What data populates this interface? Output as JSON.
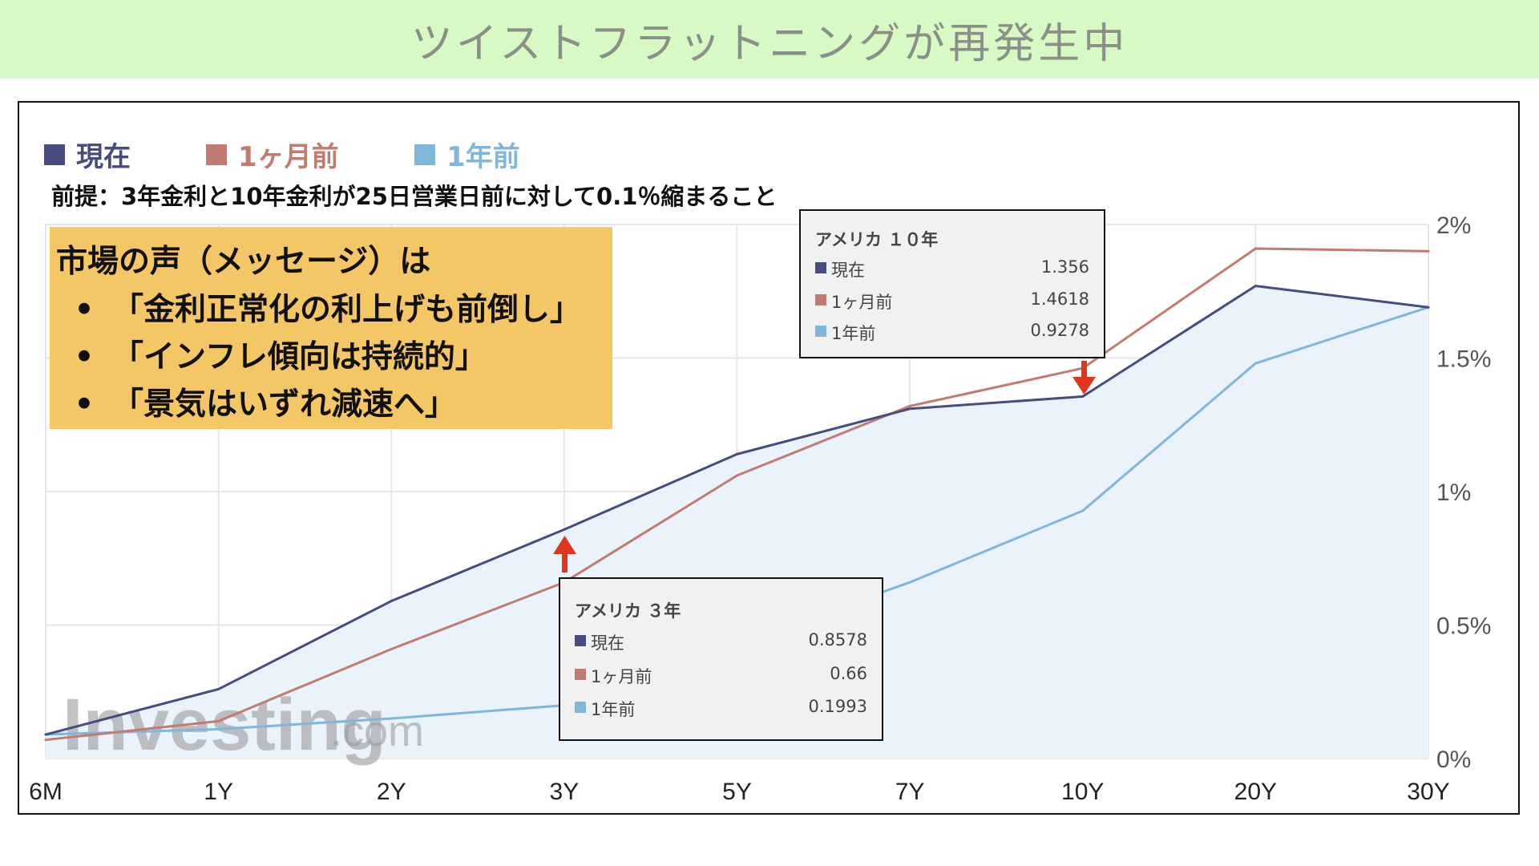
{
  "page": {
    "title": "ツイストフラットニングが再発生中",
    "premise": "前提：3年金利と10年金利が25日営業日前に対して0.1％縮まること",
    "message": {
      "heading": "市場の声（メッセージ）は",
      "bullet_symbol": "•",
      "items": [
        "「金利正常化の利上げも前倒し」",
        "「インフレ傾向は持続的」",
        "「景気はいずれ減速へ」"
      ]
    },
    "watermark": {
      "brand": "Investing",
      "suffix": ".com"
    }
  },
  "colors": {
    "banner_bg": "#d9f9c4",
    "current": "#474c7e",
    "one_month_ago": "#c27b70",
    "one_year_ago": "#7fb6d9",
    "area_fill": "#eaf3fc",
    "arrow": "#e0361e",
    "message_bg": "#f3c765"
  },
  "legend": [
    {
      "label": "現在",
      "color": "#474c7e"
    },
    {
      "label": "1ヶ月前",
      "color": "#c27b70"
    },
    {
      "label": "1年前",
      "color": "#7fb6d9"
    }
  ],
  "tooltips": [
    {
      "title": "アメリカ １０年",
      "rows": [
        {
          "label": "現在",
          "value": "1.356",
          "color": "#474c7e"
        },
        {
          "label": "1ヶ月前",
          "value": "1.4618",
          "color": "#c27b70"
        },
        {
          "label": "1年前",
          "value": "0.9278",
          "color": "#7fb6d9"
        }
      ]
    },
    {
      "title": "アメリカ ３年",
      "rows": [
        {
          "label": "現在",
          "value": "0.8578",
          "color": "#474c7e"
        },
        {
          "label": "1ヶ月前",
          "value": "0.66",
          "color": "#c27b70"
        },
        {
          "label": "1年前",
          "value": "0.1993",
          "color": "#7fb6d9"
        }
      ]
    }
  ],
  "chart_data": {
    "type": "line",
    "categories": [
      "6M",
      "1Y",
      "2Y",
      "3Y",
      "5Y",
      "7Y",
      "10Y",
      "20Y",
      "30Y"
    ],
    "y_tick_labels": [
      "0%",
      "0.5%",
      "1%",
      "1.5%",
      "2%"
    ],
    "ylim": [
      0,
      2
    ],
    "y_ticks": [
      0,
      0.5,
      1,
      1.5,
      2
    ],
    "y_axis_position": "right",
    "grid": true,
    "legend_position": "top-left",
    "series": [
      {
        "name": "現在",
        "color": "#474c7e",
        "filled": true,
        "values": [
          0.09,
          0.26,
          0.59,
          0.8578,
          1.14,
          1.31,
          1.356,
          1.77,
          1.69
        ]
      },
      {
        "name": "1ヶ月前",
        "color": "#c27b70",
        "filled": false,
        "values": [
          0.07,
          0.14,
          0.41,
          0.66,
          1.06,
          1.32,
          1.4618,
          1.91,
          1.9
        ]
      },
      {
        "name": "1年前",
        "color": "#7fb6d9",
        "filled": false,
        "values": [
          0.09,
          0.11,
          0.15,
          0.1993,
          0.43,
          0.66,
          0.9278,
          1.48,
          1.69
        ]
      }
    ]
  }
}
